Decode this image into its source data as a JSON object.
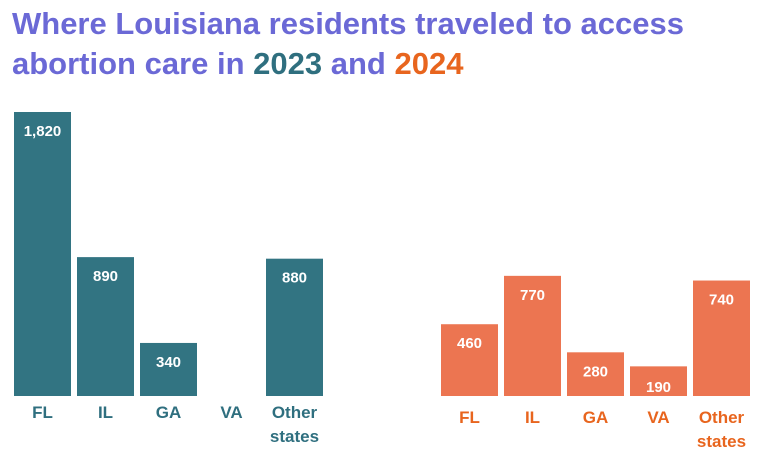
{
  "title": {
    "part1": "Where Louisiana residents traveled to access abortion care in ",
    "year1": "2023",
    "part2": " and ",
    "year2": "2024"
  },
  "colors": {
    "title": "#6b69d6",
    "y2023": "#2f6f7f",
    "y2023_bar": "#327482",
    "y2024": "#e8651e",
    "y2024_bar": "#ec7551",
    "label_2023": "#2f6f7f",
    "label_2024": "#e8651e"
  },
  "chart_data": [
    {
      "type": "bar",
      "series_name": "2023",
      "categories": [
        "FL",
        "IL",
        "GA",
        "VA",
        "Other\nstates"
      ],
      "values": [
        1820,
        890,
        340,
        0,
        880
      ],
      "value_labels": [
        "1,820",
        "890",
        "340",
        "",
        "880"
      ],
      "ylim": [
        0,
        1820
      ]
    },
    {
      "type": "bar",
      "series_name": "2024",
      "categories": [
        "FL",
        "IL",
        "GA",
        "VA",
        "Other\nstates"
      ],
      "values": [
        460,
        770,
        280,
        190,
        740
      ],
      "value_labels": [
        "460",
        "770",
        "280",
        "190",
        "740"
      ],
      "ylim": [
        0,
        1820
      ]
    }
  ]
}
